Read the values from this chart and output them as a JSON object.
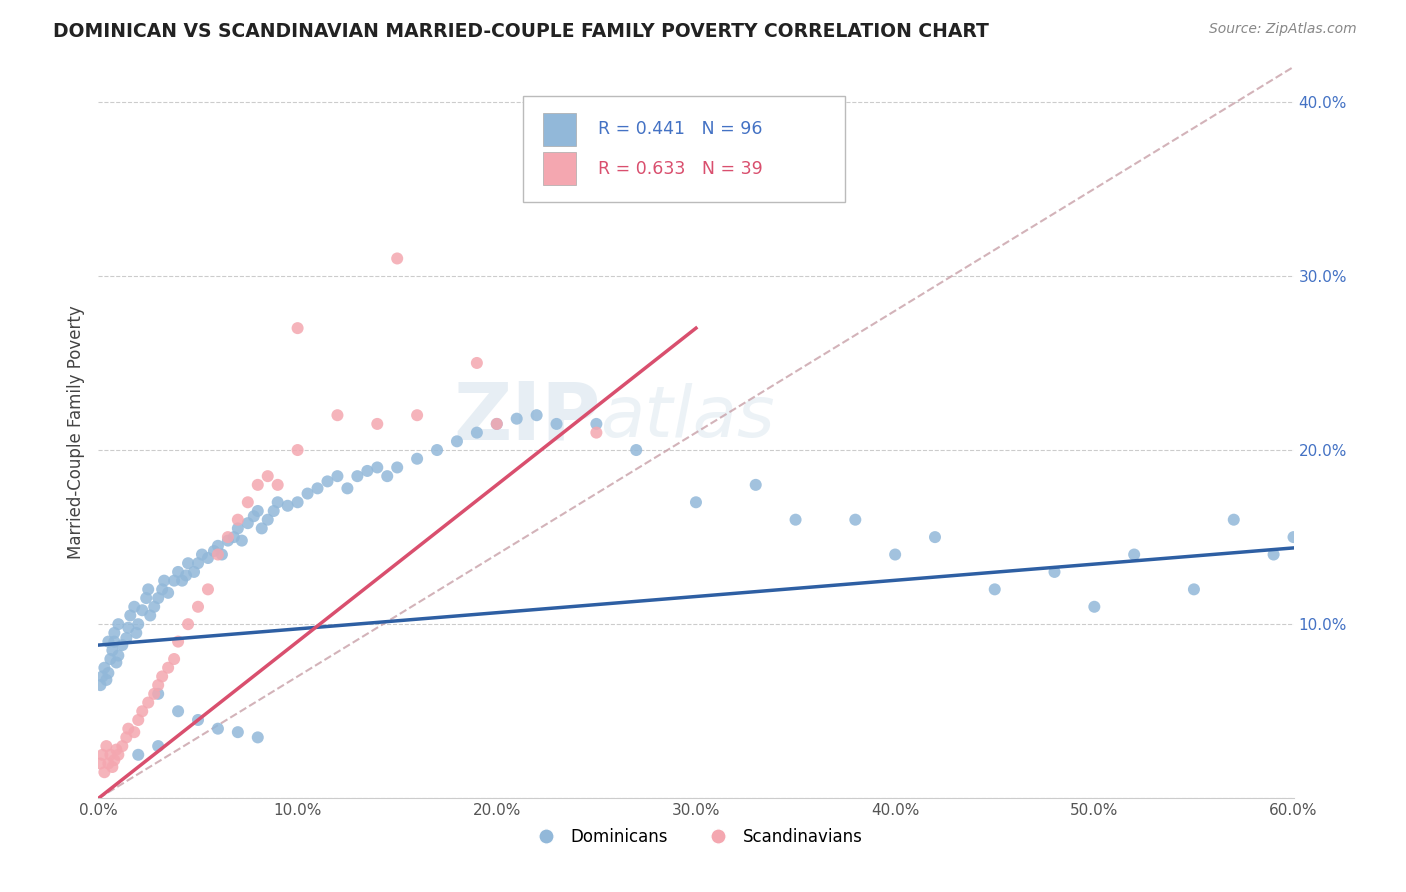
{
  "title": "DOMINICAN VS SCANDINAVIAN MARRIED-COUPLE FAMILY POVERTY CORRELATION CHART",
  "source": "Source: ZipAtlas.com",
  "ylabel": "Married-Couple Family Poverty",
  "xlim": [
    0,
    0.6
  ],
  "ylim": [
    0,
    0.42
  ],
  "blue_color": "#92b8d9",
  "pink_color": "#f4a7b0",
  "blue_line_color": "#2e5fa3",
  "pink_line_color": "#d94f6e",
  "diagonal_color": "#c8a0a8",
  "watermark_zip": "ZIP",
  "watermark_atlas": "atlas",
  "legend_r_blue": "R = 0.441",
  "legend_n_blue": "N = 96",
  "legend_r_pink": "R = 0.633",
  "legend_n_pink": "N = 39",
  "blue_label": "Dominicans",
  "pink_label": "Scandinavians",
  "blue_intercept": 0.088,
  "blue_slope": 0.093,
  "pink_intercept": 0.0,
  "pink_slope": 0.9,
  "dominicans_x": [
    0.001,
    0.002,
    0.003,
    0.004,
    0.005,
    0.006,
    0.007,
    0.008,
    0.009,
    0.01,
    0.005,
    0.008,
    0.01,
    0.012,
    0.014,
    0.015,
    0.016,
    0.018,
    0.019,
    0.02,
    0.022,
    0.024,
    0.025,
    0.026,
    0.028,
    0.03,
    0.032,
    0.033,
    0.035,
    0.038,
    0.04,
    0.042,
    0.044,
    0.045,
    0.048,
    0.05,
    0.052,
    0.055,
    0.058,
    0.06,
    0.062,
    0.065,
    0.068,
    0.07,
    0.072,
    0.075,
    0.078,
    0.08,
    0.082,
    0.085,
    0.088,
    0.09,
    0.095,
    0.1,
    0.105,
    0.11,
    0.115,
    0.12,
    0.125,
    0.13,
    0.135,
    0.14,
    0.145,
    0.15,
    0.16,
    0.17,
    0.18,
    0.19,
    0.2,
    0.21,
    0.22,
    0.23,
    0.25,
    0.27,
    0.3,
    0.33,
    0.35,
    0.38,
    0.4,
    0.42,
    0.45,
    0.48,
    0.5,
    0.52,
    0.55,
    0.57,
    0.59,
    0.6,
    0.03,
    0.04,
    0.05,
    0.06,
    0.07,
    0.08,
    0.02,
    0.03
  ],
  "dominicans_y": [
    0.065,
    0.07,
    0.075,
    0.068,
    0.072,
    0.08,
    0.085,
    0.09,
    0.078,
    0.082,
    0.09,
    0.095,
    0.1,
    0.088,
    0.092,
    0.098,
    0.105,
    0.11,
    0.095,
    0.1,
    0.108,
    0.115,
    0.12,
    0.105,
    0.11,
    0.115,
    0.12,
    0.125,
    0.118,
    0.125,
    0.13,
    0.125,
    0.128,
    0.135,
    0.13,
    0.135,
    0.14,
    0.138,
    0.142,
    0.145,
    0.14,
    0.148,
    0.15,
    0.155,
    0.148,
    0.158,
    0.162,
    0.165,
    0.155,
    0.16,
    0.165,
    0.17,
    0.168,
    0.17,
    0.175,
    0.178,
    0.182,
    0.185,
    0.178,
    0.185,
    0.188,
    0.19,
    0.185,
    0.19,
    0.195,
    0.2,
    0.205,
    0.21,
    0.215,
    0.218,
    0.22,
    0.215,
    0.215,
    0.2,
    0.17,
    0.18,
    0.16,
    0.16,
    0.14,
    0.15,
    0.12,
    0.13,
    0.11,
    0.14,
    0.12,
    0.16,
    0.14,
    0.15,
    0.06,
    0.05,
    0.045,
    0.04,
    0.038,
    0.035,
    0.025,
    0.03
  ],
  "scandinavians_x": [
    0.001,
    0.002,
    0.003,
    0.004,
    0.005,
    0.006,
    0.007,
    0.008,
    0.009,
    0.01,
    0.012,
    0.014,
    0.015,
    0.018,
    0.02,
    0.022,
    0.025,
    0.028,
    0.03,
    0.032,
    0.035,
    0.038,
    0.04,
    0.045,
    0.05,
    0.055,
    0.06,
    0.065,
    0.07,
    0.075,
    0.08,
    0.085,
    0.09,
    0.1,
    0.12,
    0.14,
    0.16,
    0.2,
    0.25
  ],
  "scandinavians_y": [
    0.02,
    0.025,
    0.015,
    0.03,
    0.02,
    0.025,
    0.018,
    0.022,
    0.028,
    0.025,
    0.03,
    0.035,
    0.04,
    0.038,
    0.045,
    0.05,
    0.055,
    0.06,
    0.065,
    0.07,
    0.075,
    0.08,
    0.09,
    0.1,
    0.11,
    0.12,
    0.14,
    0.15,
    0.16,
    0.17,
    0.18,
    0.185,
    0.18,
    0.2,
    0.22,
    0.215,
    0.22,
    0.215,
    0.21
  ]
}
